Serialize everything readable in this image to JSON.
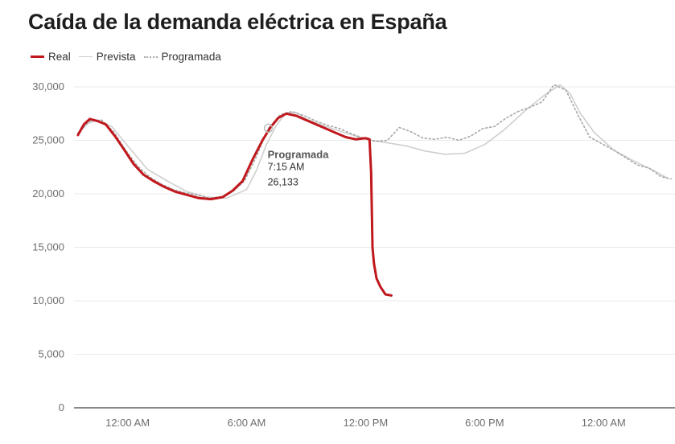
{
  "title": "Caída de la demanda eléctrica en España",
  "legend": [
    {
      "label": "Real",
      "style": "solid-red"
    },
    {
      "label": "Prevista",
      "style": "solid-grey"
    },
    {
      "label": "Programada",
      "style": "dotted-grey"
    }
  ],
  "colors": {
    "real": "#c0181d",
    "prevista": "#cfcfcf",
    "programada": "#a8a8a8",
    "grid": "#ebebeb",
    "axis": "#8a8a8a"
  },
  "tooltip": {
    "series": "Programada",
    "time": "7:15 AM",
    "value": "26,133"
  },
  "chart_data": {
    "type": "line",
    "xlim": [
      -2.7,
      27.6
    ],
    "ylim": [
      0,
      30000
    ],
    "y_ticks": [
      0,
      5000,
      10000,
      15000,
      20000,
      25000,
      30000
    ],
    "y_tick_labels": [
      "0",
      "5,000",
      "10,000",
      "15,000",
      "20,000",
      "25,000",
      "30,000"
    ],
    "x_ticks": [
      0,
      6,
      12,
      18,
      24
    ],
    "x_tick_labels": [
      "12:00 AM",
      "6:00 AM",
      "12:00 PM",
      "6:00 PM",
      "12:00 AM"
    ],
    "grid": true,
    "legend_position": "top-left",
    "series": [
      {
        "name": "Real",
        "x": [
          -2.5,
          -2.2,
          -1.9,
          -1.5,
          -1.1,
          -0.6,
          -0.2,
          0.3,
          0.8,
          1.3,
          1.8,
          2.4,
          3.0,
          3.6,
          4.2,
          4.8,
          5.3,
          5.8,
          6.3,
          6.8,
          7.2,
          7.6,
          8.0,
          8.5,
          9.0,
          9.5,
          10.0,
          10.5,
          11.0,
          11.5,
          12.0,
          12.2,
          12.28,
          12.35,
          12.42,
          12.55,
          12.75,
          13.0,
          13.3
        ],
        "y": [
          25500,
          26500,
          27000,
          26800,
          26500,
          25300,
          24200,
          22800,
          21800,
          21200,
          20700,
          20200,
          19900,
          19600,
          19500,
          19700,
          20300,
          21200,
          23200,
          25000,
          26200,
          27100,
          27500,
          27300,
          26900,
          26500,
          26100,
          25700,
          25300,
          25100,
          25200,
          25100,
          22000,
          15000,
          13500,
          12100,
          11300,
          10600,
          10500
        ]
      },
      {
        "name": "Prevista",
        "x": [
          -2.5,
          -2.0,
          -1.5,
          -0.8,
          0.0,
          1.0,
          2.0,
          3.0,
          4.0,
          5.0,
          6.0,
          6.5,
          7.0,
          7.5,
          8.0,
          8.5,
          9.0,
          10.0,
          11.0,
          12.0,
          13.0,
          14.0,
          15.0,
          16.0,
          17.0,
          18.0,
          19.0,
          20.0,
          21.0,
          21.8,
          22.3,
          22.8,
          23.5,
          24.5,
          25.5,
          26.5,
          27.2
        ],
        "y": [
          25600,
          26600,
          26900,
          26300,
          24500,
          22300,
          21200,
          20200,
          19700,
          19600,
          20400,
          22200,
          24600,
          26400,
          27600,
          27600,
          27000,
          26300,
          25700,
          25100,
          24800,
          24500,
          24000,
          23700,
          23800,
          24600,
          26000,
          27700,
          29200,
          30200,
          29400,
          27600,
          25800,
          24100,
          23100,
          22200,
          21500
        ]
      },
      {
        "name": "Programada",
        "x": [
          -2.5,
          -1.9,
          -1.3,
          -0.7,
          -0.1,
          0.5,
          1.1,
          1.7,
          2.3,
          2.9,
          3.5,
          4.1,
          4.7,
          5.3,
          5.9,
          6.5,
          7.1,
          7.7,
          8.3,
          8.9,
          9.5,
          10.1,
          10.7,
          11.3,
          11.9,
          12.5,
          13.1,
          13.7,
          14.3,
          14.9,
          15.5,
          16.1,
          16.7,
          17.3,
          17.9,
          18.5,
          19.1,
          19.7,
          20.3,
          20.9,
          21.5,
          22.1,
          22.7,
          23.3,
          23.9,
          24.5,
          25.1,
          25.7,
          26.3,
          26.9,
          27.4
        ],
        "y": [
          25700,
          26800,
          26900,
          25800,
          24100,
          22600,
          21600,
          20900,
          20400,
          20100,
          19900,
          19600,
          19700,
          20200,
          21200,
          23500,
          26133,
          27400,
          27700,
          27300,
          26800,
          26400,
          26100,
          25600,
          25200,
          24900,
          25000,
          26200,
          25800,
          25200,
          25100,
          25300,
          25000,
          25400,
          26100,
          26300,
          27100,
          27700,
          28100,
          28600,
          30200,
          29700,
          27400,
          25300,
          24700,
          24100,
          23400,
          22700,
          22400,
          21600,
          21400
        ]
      }
    ]
  }
}
